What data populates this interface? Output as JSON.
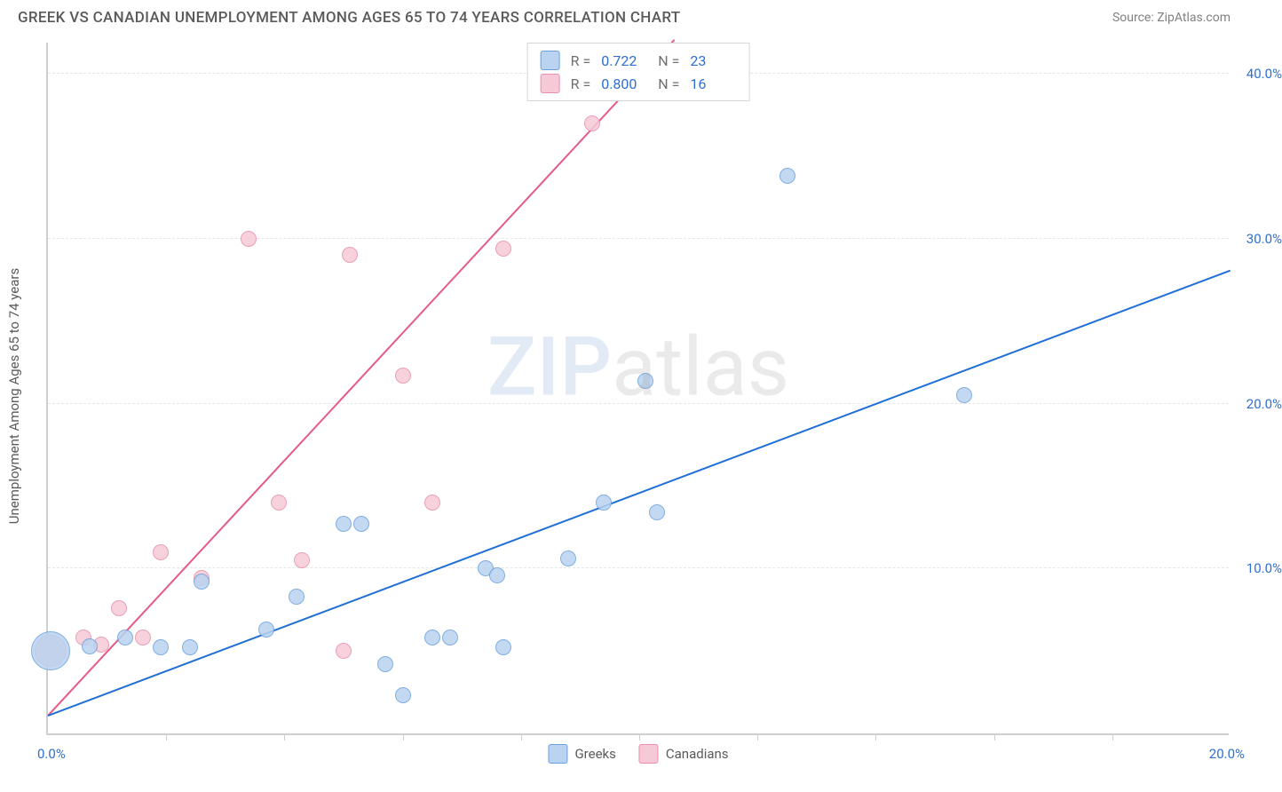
{
  "title": "GREEK VS CANADIAN UNEMPLOYMENT AMONG AGES 65 TO 74 YEARS CORRELATION CHART",
  "source": "Source: ZipAtlas.com",
  "watermark": {
    "zip": "ZIP",
    "atlas": "atlas"
  },
  "chart": {
    "type": "scatter",
    "xlim": [
      0,
      20
    ],
    "ylim": [
      0,
      42
    ],
    "x_tick_positions": [
      2,
      4,
      6,
      8,
      10,
      12,
      14,
      16,
      18
    ],
    "x_label_min": "0.0%",
    "x_label_max": "20.0%",
    "y_ticks": [
      {
        "value": 10,
        "label": "10.0%"
      },
      {
        "value": 20,
        "label": "20.0%"
      },
      {
        "value": 30,
        "label": "30.0%"
      },
      {
        "value": 40,
        "label": "40.0%"
      }
    ],
    "y_axis_title": "Unemployment Among Ages 65 to 74 years",
    "background_color": "#ffffff",
    "grid_color": "#e6e6e6",
    "axis_color": "#cfcfcf",
    "tick_label_color": "#2f6fd0",
    "series": {
      "greeks": {
        "label": "Greeks",
        "R": "0.722",
        "N": "23",
        "point_fill": "#b9d3f0",
        "point_stroke": "#6aa0de",
        "line_color": "#1f6fd6",
        "trend": {
          "x1": 0,
          "y1": 1.0,
          "x2": 20,
          "y2": 28.0
        },
        "points": [
          {
            "x": 0.05,
            "y": 5.0,
            "r": 22
          },
          {
            "x": 0.7,
            "y": 5.3,
            "r": 9
          },
          {
            "x": 1.3,
            "y": 5.8,
            "r": 9
          },
          {
            "x": 1.9,
            "y": 5.2,
            "r": 9
          },
          {
            "x": 2.4,
            "y": 5.2,
            "r": 9
          },
          {
            "x": 2.6,
            "y": 9.2,
            "r": 9
          },
          {
            "x": 3.7,
            "y": 6.3,
            "r": 9
          },
          {
            "x": 4.2,
            "y": 8.3,
            "r": 9
          },
          {
            "x": 5.0,
            "y": 12.7,
            "r": 9
          },
          {
            "x": 5.3,
            "y": 12.7,
            "r": 9
          },
          {
            "x": 5.7,
            "y": 4.2,
            "r": 9
          },
          {
            "x": 6.0,
            "y": 2.3,
            "r": 9
          },
          {
            "x": 6.5,
            "y": 5.8,
            "r": 9
          },
          {
            "x": 6.8,
            "y": 5.8,
            "r": 9
          },
          {
            "x": 7.4,
            "y": 10.0,
            "r": 9
          },
          {
            "x": 7.6,
            "y": 9.6,
            "r": 9
          },
          {
            "x": 8.8,
            "y": 10.6,
            "r": 9
          },
          {
            "x": 9.4,
            "y": 14.0,
            "r": 9
          },
          {
            "x": 10.3,
            "y": 13.4,
            "r": 9
          },
          {
            "x": 10.1,
            "y": 21.4,
            "r": 9
          },
          {
            "x": 12.5,
            "y": 33.8,
            "r": 9
          },
          {
            "x": 15.5,
            "y": 20.5,
            "r": 9
          },
          {
            "x": 7.7,
            "y": 5.2,
            "r": 9
          }
        ]
      },
      "canadians": {
        "label": "Canadians",
        "R": "0.800",
        "N": "16",
        "point_fill": "#f6c9d6",
        "point_stroke": "#e88fab",
        "line_color": "#e65a86",
        "trend": {
          "x1": 0,
          "y1": 1.0,
          "x2": 10.6,
          "y2": 42.0
        },
        "points": [
          {
            "x": 0.05,
            "y": 5.0,
            "r": 18
          },
          {
            "x": 0.6,
            "y": 5.8,
            "r": 9
          },
          {
            "x": 0.9,
            "y": 5.4,
            "r": 9
          },
          {
            "x": 1.2,
            "y": 7.6,
            "r": 9
          },
          {
            "x": 1.6,
            "y": 5.8,
            "r": 9
          },
          {
            "x": 1.9,
            "y": 11.0,
            "r": 9
          },
          {
            "x": 2.6,
            "y": 9.4,
            "r": 9
          },
          {
            "x": 3.4,
            "y": 30.0,
            "r": 9
          },
          {
            "x": 3.9,
            "y": 14.0,
            "r": 9
          },
          {
            "x": 4.3,
            "y": 10.5,
            "r": 9
          },
          {
            "x": 5.0,
            "y": 5.0,
            "r": 9
          },
          {
            "x": 5.1,
            "y": 29.0,
            "r": 9
          },
          {
            "x": 6.0,
            "y": 21.7,
            "r": 9
          },
          {
            "x": 6.5,
            "y": 14.0,
            "r": 9
          },
          {
            "x": 7.7,
            "y": 29.4,
            "r": 9
          },
          {
            "x": 9.2,
            "y": 37.0,
            "r": 9
          }
        ]
      }
    }
  }
}
